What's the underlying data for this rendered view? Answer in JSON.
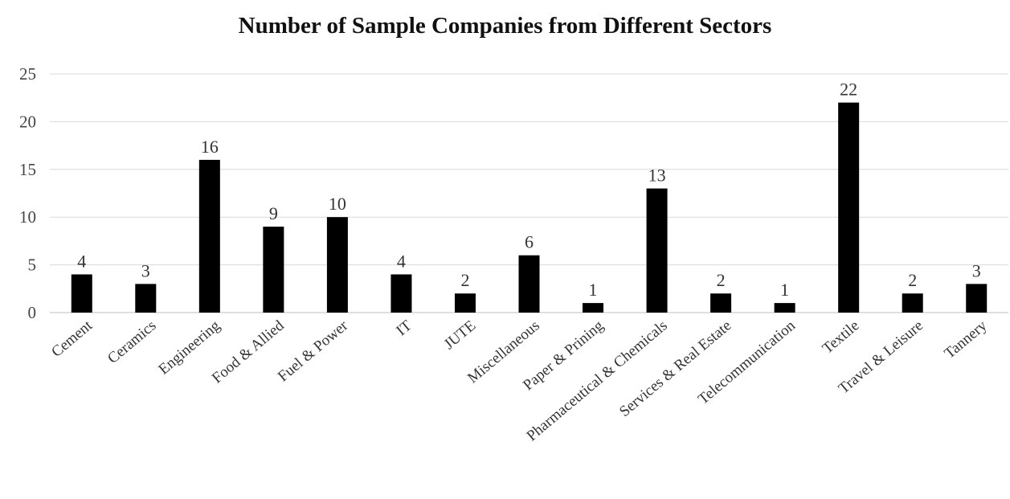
{
  "chart_data": {
    "type": "bar",
    "title": "Number of Sample Companies from Different Sectors",
    "xlabel": "",
    "ylabel": "",
    "categories": [
      "Cement",
      "Ceramics",
      "Engineering",
      "Food & Allied",
      "Fuel & Power",
      "IT",
      "JUTE",
      "Miscellaneous",
      "Paper & Prining",
      "Pharmaceutical & Chemicals",
      "Services & Real Estate",
      "Telecommunication",
      "Textile",
      "Travel & Leisure",
      "Tannery"
    ],
    "values": [
      4,
      3,
      16,
      9,
      10,
      4,
      2,
      6,
      1,
      13,
      2,
      1,
      22,
      2,
      3
    ],
    "data_labels": [
      "4",
      "3",
      "16",
      "9",
      "10",
      "4",
      "2",
      "6",
      "1",
      "13",
      "2",
      "1",
      "22",
      "2",
      "3"
    ],
    "ylim": [
      0,
      25
    ],
    "yticks": [
      "0",
      "5",
      "10",
      "15",
      "20",
      "25"
    ],
    "ytick_values": [
      0,
      5,
      10,
      15,
      20,
      25
    ],
    "grid": true,
    "legend": "none",
    "bar_color": "#000000",
    "grid_color": "#d9d9d9"
  }
}
